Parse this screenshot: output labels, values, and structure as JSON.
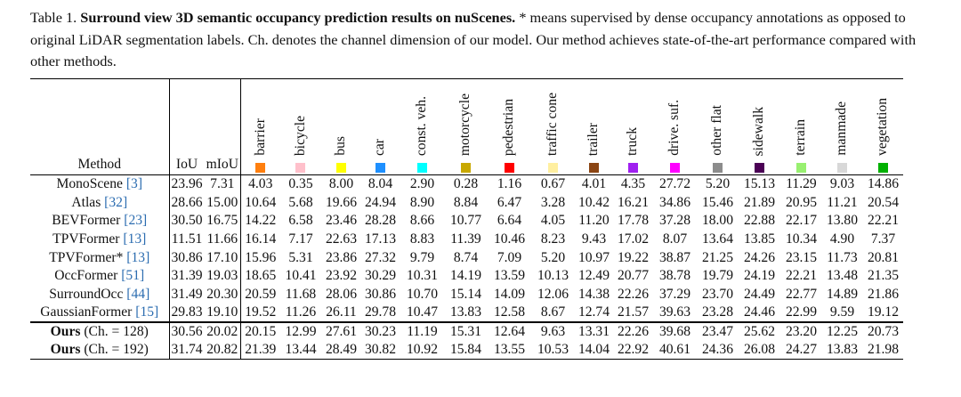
{
  "caption": {
    "label": "Table 1.",
    "title": "Surround view 3D semantic occupancy prediction results on nuScenes.",
    "text": "* means supervised by dense occupancy annotations as opposed to original LiDAR segmentation labels. Ch. denotes the channel dimension of our model. Our method achieves state-of-the-art performance compared with other methods."
  },
  "header": {
    "method": "Method",
    "iou": "IoU",
    "miou": "mIoU",
    "classes": [
      {
        "name": "barrier",
        "color": "#ff7f0e"
      },
      {
        "name": "bicycle",
        "color": "#ffc0cb"
      },
      {
        "name": "bus",
        "color": "#ffff00"
      },
      {
        "name": "car",
        "color": "#1e90ff"
      },
      {
        "name": "const. veh.",
        "color": "#00ffff"
      },
      {
        "name": "motorcycle",
        "color": "#c8a800"
      },
      {
        "name": "pedestrian",
        "color": "#ff0000"
      },
      {
        "name": "traffic cone",
        "color": "#ffefa0"
      },
      {
        "name": "trailer",
        "color": "#8b4513"
      },
      {
        "name": "truck",
        "color": "#a020f0"
      },
      {
        "name": "drive. suf.",
        "color": "#ff00ff"
      },
      {
        "name": "other flat",
        "color": "#8c8c8c"
      },
      {
        "name": "sidewalk",
        "color": "#4b0055"
      },
      {
        "name": "terrain",
        "color": "#98f070"
      },
      {
        "name": "manmade",
        "color": "#d8d8d8"
      },
      {
        "name": "vegetation",
        "color": "#00b000"
      }
    ]
  },
  "rows": [
    {
      "method": "MonoScene",
      "cite": "[3]",
      "values": [
        "23.96",
        "7.31",
        "4.03",
        "0.35",
        "8.00",
        "8.04",
        "2.90",
        "0.28",
        "1.16",
        "0.67",
        "4.01",
        "4.35",
        "27.72",
        "5.20",
        "15.13",
        "11.29",
        "9.03",
        "14.86"
      ],
      "bold": []
    },
    {
      "method": "Atlas",
      "cite": "[32]",
      "values": [
        "28.66",
        "15.00",
        "10.64",
        "5.68",
        "19.66",
        "24.94",
        "8.90",
        "8.84",
        "6.47",
        "3.28",
        "10.42",
        "16.21",
        "34.86",
        "15.46",
        "21.89",
        "20.95",
        "11.21",
        "20.54"
      ],
      "bold": []
    },
    {
      "method": "BEVFormer",
      "cite": "[23]",
      "values": [
        "30.50",
        "16.75",
        "14.22",
        "6.58",
        "23.46",
        "28.28",
        "8.66",
        "10.77",
        "6.64",
        "4.05",
        "11.20",
        "17.78",
        "37.28",
        "18.00",
        "22.88",
        "22.17",
        "13.80",
        "22.21"
      ],
      "bold": [
        17
      ]
    },
    {
      "method": "TPVFormer",
      "cite": "[13]",
      "values": [
        "11.51",
        "11.66",
        "16.14",
        "7.17",
        "22.63",
        "17.13",
        "8.83",
        "11.39",
        "10.46",
        "8.23",
        "9.43",
        "17.02",
        "8.07",
        "13.64",
        "13.85",
        "10.34",
        "4.90",
        "7.37"
      ],
      "bold": []
    },
    {
      "method": "TPVFormer*",
      "cite": "[13]",
      "values": [
        "30.86",
        "17.10",
        "15.96",
        "5.31",
        "23.86",
        "27.32",
        "9.79",
        "8.74",
        "7.09",
        "5.20",
        "10.97",
        "19.22",
        "38.87",
        "21.25",
        "24.26",
        "23.15",
        "11.73",
        "20.81"
      ],
      "bold": []
    },
    {
      "method": "OccFormer",
      "cite": "[51]",
      "values": [
        "31.39",
        "19.03",
        "18.65",
        "10.41",
        "23.92",
        "30.29",
        "10.31",
        "14.19",
        "13.59",
        "10.13",
        "12.49",
        "20.77",
        "38.78",
        "19.79",
        "24.19",
        "22.21",
        "13.48",
        "21.35"
      ],
      "bold": []
    },
    {
      "method": "SurroundOcc",
      "cite": "[44]",
      "values": [
        "31.49",
        "20.30",
        "20.59",
        "11.68",
        "28.06",
        "30.86",
        "10.70",
        "15.14",
        "14.09",
        "12.06",
        "14.38",
        "22.26",
        "37.29",
        "23.70",
        "24.49",
        "22.77",
        "14.89",
        "21.86"
      ],
      "bold": [
        5,
        8,
        9,
        10,
        16
      ]
    },
    {
      "method": "GaussianFormer",
      "cite": "[15]",
      "values": [
        "29.83",
        "19.10",
        "19.52",
        "11.26",
        "26.11",
        "29.78",
        "10.47",
        "13.83",
        "12.58",
        "8.67",
        "12.74",
        "21.57",
        "39.63",
        "23.28",
        "24.46",
        "22.99",
        "9.59",
        "19.12"
      ],
      "bold": []
    }
  ],
  "ours": [
    {
      "method": "Ours",
      "suffix": "(Ch. = 128)",
      "values": [
        "30.56",
        "20.02",
        "20.15",
        "12.99",
        "27.61",
        "30.23",
        "11.19",
        "15.31",
        "12.64",
        "9.63",
        "13.31",
        "22.26",
        "39.68",
        "23.47",
        "25.62",
        "23.20",
        "12.25",
        "20.73"
      ],
      "bold": [
        6
      ]
    },
    {
      "method": "Ours",
      "suffix": "(Ch. = 192)",
      "values": [
        "31.74",
        "20.82",
        "21.39",
        "13.44",
        "28.49",
        "30.82",
        "10.92",
        "15.84",
        "13.55",
        "10.53",
        "14.04",
        "22.92",
        "40.61",
        "24.36",
        "26.08",
        "24.27",
        "13.83",
        "21.98"
      ],
      "bold": [
        0,
        1,
        2,
        3,
        4,
        7,
        11,
        12,
        13,
        14,
        15
      ]
    }
  ]
}
